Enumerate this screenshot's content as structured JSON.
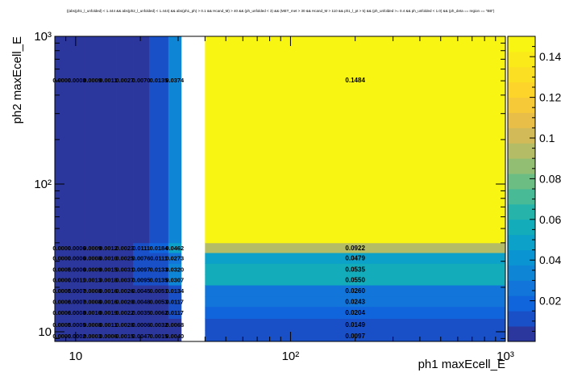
{
  "chart_data": {
    "type": "heatmap",
    "title": "((abs(ph1_l_unfolded) < 1.444 && abs(ph2_l_unfolded) < 1.444) && abs(ph1_ph) > 0.1 && Hcand_M) > 40 && (ph_unfolded < 3) && (MET_met > 30 && Hcand_M > 110 && ph1_l_pt > 5) && (ph_unfolded >= 0.4 && ph_unfolded < 1.0) && (ph_deta == region == \"BB\")",
    "xlabel": "ph1 maxEcell_E",
    "ylabel": "ph2 maxEcell_E",
    "x_scale": "log",
    "y_scale": "log",
    "xlim": [
      8,
      1000
    ],
    "ylim": [
      8.6,
      1000
    ],
    "x_ticks": [
      {
        "v": 10,
        "label": "10"
      },
      {
        "v": 100,
        "label": "10²"
      },
      {
        "v": 1000,
        "label": "10³"
      }
    ],
    "y_ticks": [
      {
        "v": 10,
        "label": "10"
      },
      {
        "v": 100,
        "label": "10²"
      },
      {
        "v": 1000,
        "label": "10³"
      }
    ],
    "colorbar": {
      "min": 0,
      "max": 0.15,
      "ticks": [
        "0.02",
        "0.04",
        "0.06",
        "0.08",
        "0.1",
        "0.12",
        "0.14"
      ]
    },
    "x_edges": [
      8,
      9.3,
      11,
      13,
      15.5,
      18.5,
      22,
      27,
      31,
      40,
      1000
    ],
    "y_edges": [
      8.6,
      10.2,
      12.3,
      14.8,
      17.4,
      20.7,
      24.4,
      29.0,
      34.3,
      40,
      1000
    ],
    "values": [
      [
        0.0,
        0.0002,
        0.0003,
        0.0006,
        0.0015,
        0.0047,
        0.0015,
        0.004,
        null,
        0.0097
      ],
      [
        0.0005,
        0.0005,
        0.0008,
        0.0011,
        0.0028,
        0.0006,
        0.0032,
        0.0068,
        null,
        0.0149
      ],
      [
        0.0006,
        0.0008,
        0.001,
        0.0019,
        0.0022,
        0.0035,
        0.0062,
        0.0117,
        null,
        0.0204
      ],
      [
        0.0006,
        0.0007,
        0.0008,
        0.0016,
        0.002,
        0.0048,
        0.0053,
        0.0117,
        null,
        0.0243
      ],
      [
        0.0005,
        0.0007,
        0.0008,
        0.0016,
        0.0026,
        0.0045,
        0.0051,
        0.0134,
        null,
        0.026
      ],
      [
        0.0,
        0.0011,
        0.0013,
        0.0018,
        0.0037,
        0.0095,
        0.0135,
        0.0307,
        null,
        0.055
      ],
      [
        0.0005,
        0.0006,
        0.0009,
        0.0015,
        0.0031,
        0.0097,
        0.0133,
        0.032,
        null,
        0.0535
      ],
      [
        0.0,
        0.0006,
        0.0008,
        0.001,
        0.0025,
        0.0076,
        0.0111,
        0.0273,
        null,
        0.0479
      ],
      [
        0.0,
        0.0006,
        0.0009,
        0.0012,
        0.0023,
        0.0111,
        0.0184,
        0.0462,
        null,
        0.0922
      ],
      [
        0.0,
        0.0008,
        0.0009,
        0.0011,
        0.0027,
        0.007,
        0.0135,
        0.0374,
        null,
        0.1484
      ]
    ]
  }
}
